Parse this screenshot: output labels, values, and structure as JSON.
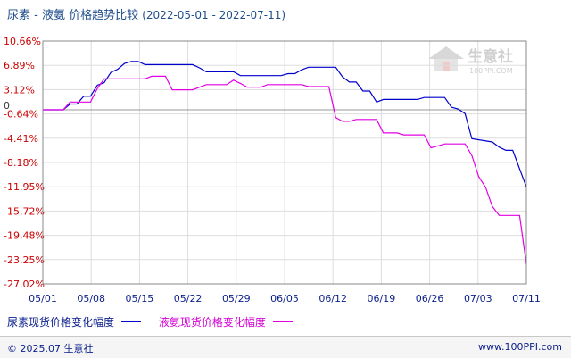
{
  "title": "尿素 - 液氨 价格趋势比较",
  "date_range": "(2022-05-01 - 2022-07-11)",
  "watermark": {
    "name": "生意社",
    "url": "100PPI.COM"
  },
  "footer": {
    "copyright": "© 2025.07 生意社",
    "site": "www.100PPI.com"
  },
  "colors": {
    "series1": "#0000cc",
    "series2": "#e400e4",
    "ytick": "#cc0000",
    "text": "#0a1e8c"
  },
  "chart_data": {
    "type": "line",
    "title": "尿素 - 液氨 价格趋势比较",
    "x_ticks": [
      "05/01",
      "05/08",
      "05/15",
      "05/22",
      "05/29",
      "06/05",
      "06/12",
      "06/19",
      "06/26",
      "07/03",
      "07/11"
    ],
    "x_range": [
      "2022-05-01",
      "2022-07-11"
    ],
    "y_ticks": [
      "10.66%",
      "6.89%",
      "3.12%",
      "-0.64%",
      "-4.41%",
      "-8.18%",
      "-11.95%",
      "-15.72%",
      "-19.48%",
      "-23.25%",
      "-27.02%"
    ],
    "ylim": [
      -27.02,
      10.66
    ],
    "zero_label": "0",
    "legend_position": "bottom",
    "grid": true,
    "series": [
      {
        "name": "尿素现货价格变化幅度",
        "points": [
          [
            "2022-05-01",
            0
          ],
          [
            "2022-05-04",
            0
          ],
          [
            "2022-05-05",
            0.9
          ],
          [
            "2022-05-06",
            0.9
          ],
          [
            "2022-05-07",
            2.1
          ],
          [
            "2022-05-08",
            2.1
          ],
          [
            "2022-05-09",
            3.8
          ],
          [
            "2022-05-10",
            4.2
          ],
          [
            "2022-05-11",
            5.8
          ],
          [
            "2022-05-12",
            6.3
          ],
          [
            "2022-05-13",
            7.2
          ],
          [
            "2022-05-14",
            7.5
          ],
          [
            "2022-05-15",
            7.5
          ],
          [
            "2022-05-16",
            7.0
          ],
          [
            "2022-05-20",
            7.0
          ],
          [
            "2022-05-21",
            7.0
          ],
          [
            "2022-05-23",
            7.0
          ],
          [
            "2022-05-24",
            6.5
          ],
          [
            "2022-05-25",
            5.9
          ],
          [
            "2022-05-29",
            5.9
          ],
          [
            "2022-05-30",
            5.3
          ],
          [
            "2022-06-05",
            5.3
          ],
          [
            "2022-06-06",
            5.6
          ],
          [
            "2022-06-07",
            5.6
          ],
          [
            "2022-06-08",
            6.2
          ],
          [
            "2022-06-09",
            6.6
          ],
          [
            "2022-06-12",
            6.6
          ],
          [
            "2022-06-13",
            6.6
          ],
          [
            "2022-06-14",
            5.1
          ],
          [
            "2022-06-15",
            4.3
          ],
          [
            "2022-06-16",
            4.3
          ],
          [
            "2022-06-17",
            2.9
          ],
          [
            "2022-06-18",
            2.9
          ],
          [
            "2022-06-19",
            1.2
          ],
          [
            "2022-06-20",
            1.6
          ],
          [
            "2022-06-25",
            1.6
          ],
          [
            "2022-06-26",
            1.9
          ],
          [
            "2022-06-29",
            1.9
          ],
          [
            "2022-06-30",
            0.4
          ],
          [
            "2022-07-01",
            0.1
          ],
          [
            "2022-07-02",
            -0.6
          ],
          [
            "2022-07-03",
            -4.5
          ],
          [
            "2022-07-06",
            -5.0
          ],
          [
            "2022-07-07",
            -5.8
          ],
          [
            "2022-07-08",
            -6.3
          ],
          [
            "2022-07-09",
            -6.3
          ],
          [
            "2022-07-11",
            -12.0
          ]
        ]
      },
      {
        "name": "液氨现货价格变化幅度",
        "points": [
          [
            "2022-05-01",
            0
          ],
          [
            "2022-05-04",
            0
          ],
          [
            "2022-05-05",
            1.2
          ],
          [
            "2022-05-08",
            1.2
          ],
          [
            "2022-05-09",
            3.3
          ],
          [
            "2022-05-10",
            4.8
          ],
          [
            "2022-05-16",
            4.8
          ],
          [
            "2022-05-17",
            5.2
          ],
          [
            "2022-05-19",
            5.2
          ],
          [
            "2022-05-20",
            3.1
          ],
          [
            "2022-05-23",
            3.1
          ],
          [
            "2022-05-24",
            3.5
          ],
          [
            "2022-05-25",
            3.9
          ],
          [
            "2022-05-28",
            3.9
          ],
          [
            "2022-05-29",
            4.6
          ],
          [
            "2022-05-30",
            4.1
          ],
          [
            "2022-05-31",
            3.5
          ],
          [
            "2022-06-02",
            3.5
          ],
          [
            "2022-06-03",
            3.9
          ],
          [
            "2022-06-08",
            3.9
          ],
          [
            "2022-06-09",
            3.6
          ],
          [
            "2022-06-12",
            3.6
          ],
          [
            "2022-06-13",
            -1.2
          ],
          [
            "2022-06-14",
            -1.8
          ],
          [
            "2022-06-15",
            -1.8
          ],
          [
            "2022-06-16",
            -1.5
          ],
          [
            "2022-06-19",
            -1.5
          ],
          [
            "2022-06-20",
            -3.6
          ],
          [
            "2022-06-22",
            -3.6
          ],
          [
            "2022-06-23",
            -3.9
          ],
          [
            "2022-06-26",
            -3.9
          ],
          [
            "2022-06-27",
            -5.9
          ],
          [
            "2022-06-28",
            -5.6
          ],
          [
            "2022-06-29",
            -5.3
          ],
          [
            "2022-07-02",
            -5.3
          ],
          [
            "2022-07-03",
            -7.1
          ],
          [
            "2022-07-04",
            -10.4
          ],
          [
            "2022-07-05",
            -12.0
          ],
          [
            "2022-07-06",
            -15.0
          ],
          [
            "2022-07-07",
            -16.4
          ],
          [
            "2022-07-09",
            -16.4
          ],
          [
            "2022-07-10",
            -16.4
          ],
          [
            "2022-07-11",
            -24.0
          ]
        ]
      }
    ]
  }
}
